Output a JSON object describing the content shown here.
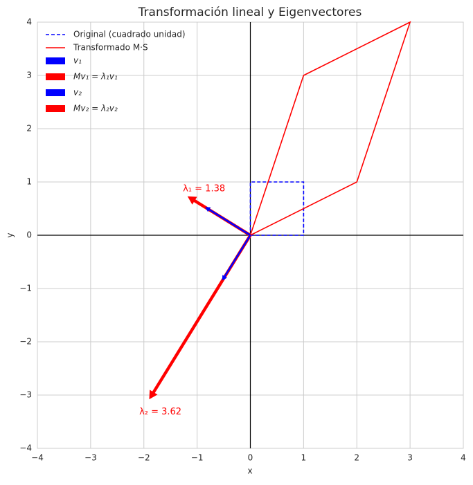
{
  "chart_data": {
    "type": "vector",
    "title": "Transformación lineal y Eigenvectores",
    "xlabel": "x",
    "ylabel": "y",
    "xlim": [
      -4,
      4
    ],
    "ylim": [
      -4,
      4
    ],
    "xticks": [
      {
        "value": -4,
        "label": "−4"
      },
      {
        "value": -3,
        "label": "−3"
      },
      {
        "value": -2,
        "label": "−2"
      },
      {
        "value": -1,
        "label": "−1"
      },
      0,
      1,
      2,
      3,
      4
    ],
    "yticks": [
      {
        "value": -4,
        "label": "−4"
      },
      {
        "value": -3,
        "label": "−3"
      },
      {
        "value": -2,
        "label": "−2"
      },
      {
        "value": -1,
        "label": "−1"
      },
      0,
      1,
      2,
      3,
      4
    ],
    "grid": true,
    "legend": "upper left",
    "series": [
      {
        "name": "Original (cuadrado unidad)",
        "color": "#0000ff",
        "dashed": true,
        "x": [
          0,
          1,
          1,
          0,
          0
        ],
        "y": [
          0,
          0,
          1,
          1,
          0
        ]
      },
      {
        "name": "Transformado M·S",
        "color": "#ff0000",
        "dashed": false,
        "x": [
          0,
          2,
          3,
          1,
          0
        ],
        "y": [
          0,
          1,
          4,
          3,
          0
        ]
      }
    ],
    "vectors": [
      {
        "name": "v₁",
        "color": "#0000ff",
        "dx": -0.85,
        "dy": 0.53
      },
      {
        "name": "Mv₁ = λ₁v₁",
        "color": "#ff0000",
        "dx": -1.18,
        "dy": 0.73
      },
      {
        "name": "v₂",
        "color": "#0000ff",
        "dx": -0.53,
        "dy": -0.85
      },
      {
        "name": "Mv₂ = λ₂v₂",
        "color": "#ff0000",
        "dx": -1.9,
        "dy": -3.08
      }
    ],
    "annotations": [
      "λ₁ = 1.38",
      "λ₂ = 3.62"
    ]
  }
}
